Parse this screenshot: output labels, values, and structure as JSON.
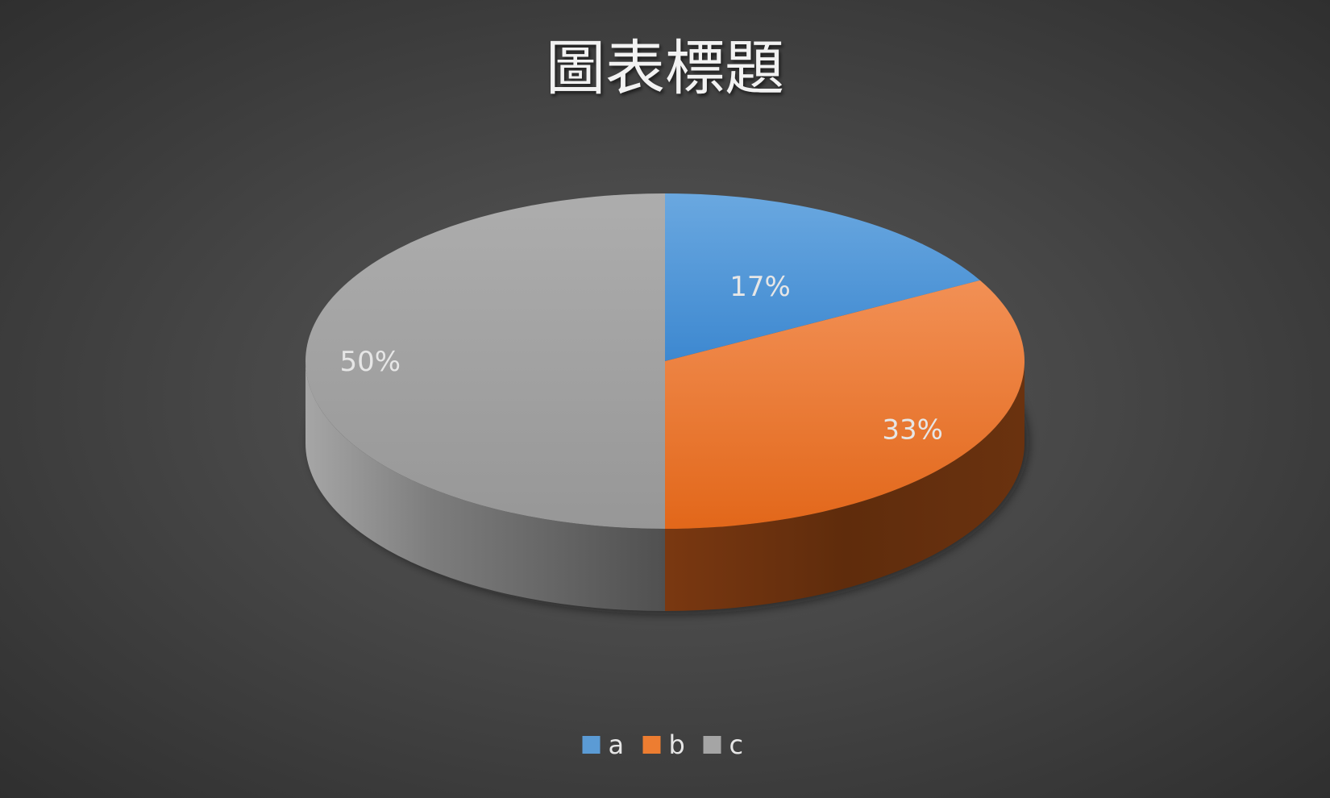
{
  "chart_data": {
    "type": "pie",
    "title": "圖表標題",
    "categories": [
      "a",
      "b",
      "c"
    ],
    "values": [
      17,
      33,
      50
    ],
    "data_labels": [
      "17%",
      "33%",
      "50%"
    ],
    "colors": [
      "#5b9bd5",
      "#ed7d31",
      "#a5a5a5"
    ],
    "legend": {
      "position": "bottom",
      "entries": [
        "a",
        "b",
        "c"
      ]
    },
    "style": "3d"
  }
}
